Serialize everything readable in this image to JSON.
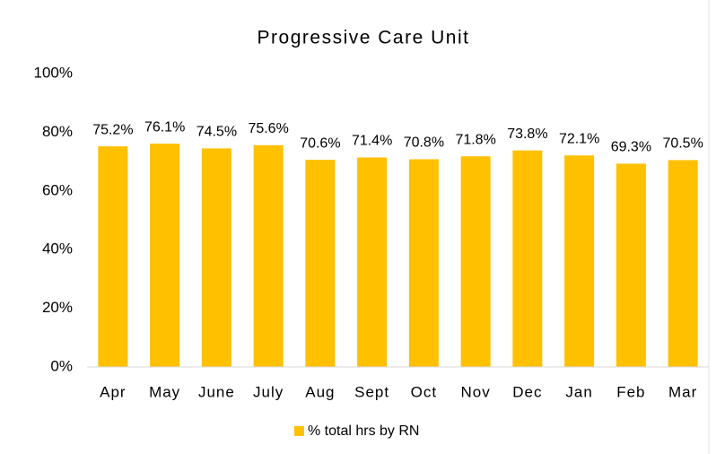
{
  "chart_data": {
    "type": "bar",
    "title": "Progressive Care Unit",
    "categories": [
      "Apr",
      "May",
      "June",
      "July",
      "Aug",
      "Sept",
      "Oct",
      "Nov",
      "Dec",
      "Jan",
      "Feb",
      "Mar"
    ],
    "series": [
      {
        "name": "% total hrs by RN",
        "color": "#ffc000",
        "values": [
          75.2,
          76.1,
          74.5,
          75.6,
          70.6,
          71.4,
          70.8,
          71.8,
          73.8,
          72.1,
          69.3,
          70.5
        ],
        "value_labels": [
          "75.2%",
          "76.1%",
          "74.5%",
          "75.6%",
          "70.6%",
          "71.4%",
          "70.8%",
          "71.8%",
          "73.8%",
          "72.1%",
          "69.3%",
          "70.5%"
        ]
      }
    ],
    "ylim": [
      0,
      100
    ],
    "yticks": [
      {
        "value": 0,
        "label": "0%"
      },
      {
        "value": 20,
        "label": "20%"
      },
      {
        "value": 40,
        "label": "40%"
      },
      {
        "value": 60,
        "label": "60%"
      },
      {
        "value": 80,
        "label": "80%"
      },
      {
        "value": 100,
        "label": "100%"
      }
    ],
    "legend": "bottom",
    "grid": false
  }
}
